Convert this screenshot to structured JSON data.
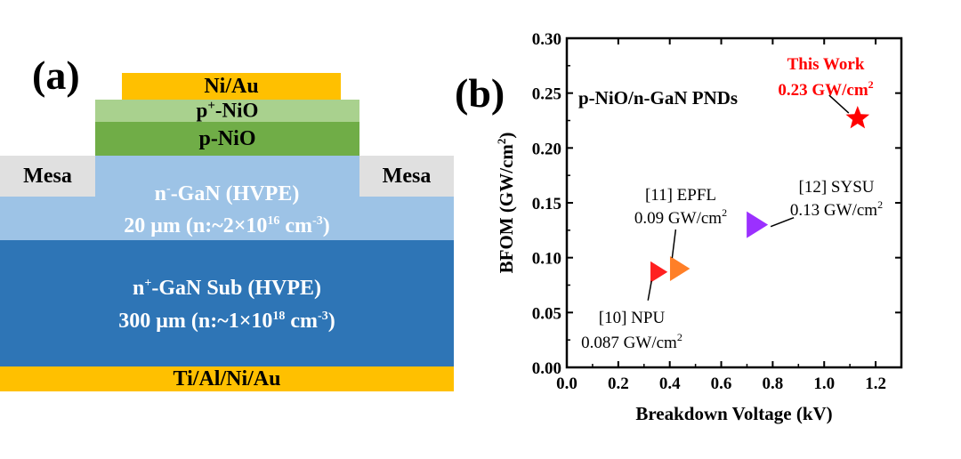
{
  "panel_a": {
    "label": "(a)",
    "layers": {
      "contact_top": "Ni/Au",
      "p_plus": {
        "base": "p",
        "sup": "+",
        "rest": "-NiO"
      },
      "p_nio": "p-NiO",
      "mesa_left": "Mesa",
      "mesa_right": "Mesa",
      "drift": {
        "line1_base": "n",
        "line1_sup": "-",
        "line1_rest": "-GaN (HVPE)",
        "line2_a": "20 μm (n:~2×10",
        "line2_sup1": "16",
        "line2_b": " cm",
        "line2_sup2": "-3",
        "line2_c": ")"
      },
      "substrate": {
        "line1_base": "n",
        "line1_sup": "+",
        "line1_rest": "-GaN Sub (HVPE)",
        "line2_a": "300 μm (n:~1×10",
        "line2_sup1": "18",
        "line2_b": " cm",
        "line2_sup2": "-3",
        "line2_c": ")"
      },
      "contact_bottom": "Ti/Al/Ni/Au"
    },
    "colors": {
      "gold": "#FFC000",
      "p_plus": "#A9D18E",
      "p_nio": "#70AD47",
      "mesa": "#E0E0E0",
      "drift": "#9DC3E6",
      "substrate": "#2E75B6"
    }
  },
  "panel_b": {
    "label": "(b)"
  },
  "chart_data": {
    "type": "scatter",
    "title": "p-NiO/n-GaN PNDs",
    "xlabel": "Breakdown Voltage (kV)",
    "ylabel": {
      "a": "BFOM (GW/cm",
      "sup": "2",
      "b": ")"
    },
    "xlim": [
      0.0,
      1.3
    ],
    "ylim": [
      0.0,
      0.3
    ],
    "xticks": [
      "0.0",
      "0.2",
      "0.4",
      "0.6",
      "0.8",
      "1.0",
      "1.2"
    ],
    "yticks": [
      "0.00",
      "0.05",
      "0.10",
      "0.15",
      "0.20",
      "0.25",
      "0.30"
    ],
    "xtick_values": [
      0.0,
      0.2,
      0.4,
      0.6,
      0.8,
      1.0,
      1.2
    ],
    "ytick_values": [
      0.0,
      0.05,
      0.1,
      0.15,
      0.2,
      0.25,
      0.3
    ],
    "points": [
      {
        "name": "[10] NPU",
        "x": 0.35,
        "y": 0.087,
        "color": "#FF2020",
        "marker": "triangle-right",
        "value_label": "0.087 GW/cm",
        "unit_sup": "2"
      },
      {
        "name": "[11] EPFL",
        "x": 0.43,
        "y": 0.09,
        "color": "#FF7F27",
        "marker": "triangle-right",
        "value_label": "0.09 GW/cm",
        "unit_sup": "2"
      },
      {
        "name": "[12] SYSU",
        "x": 0.73,
        "y": 0.13,
        "color": "#9B30FF",
        "marker": "triangle-right",
        "value_label": "0.13 GW/cm",
        "unit_sup": "2"
      },
      {
        "name": "This Work",
        "x": 1.13,
        "y": 0.227,
        "color": "#FF0000",
        "marker": "star",
        "value_label": "0.23 GW/cm",
        "unit_sup": "2"
      }
    ]
  }
}
